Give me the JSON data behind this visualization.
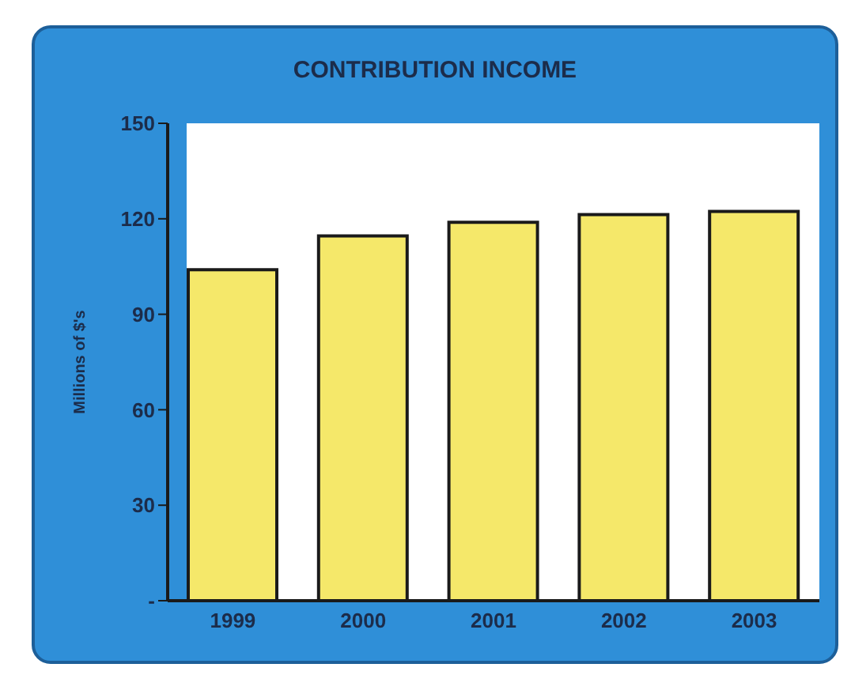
{
  "chart_data": {
    "type": "bar",
    "title": "CONTRIBUTION INCOME",
    "ylabel": "Millions of $'s",
    "categories": [
      "1999",
      "2000",
      "2001",
      "2002",
      "2003"
    ],
    "values": [
      104,
      114.6,
      118.9,
      121.3,
      122.3
    ],
    "color": "#f5e86a",
    "ylim": [
      0,
      150
    ],
    "yticks": [
      {
        "value": 0,
        "label": "-"
      },
      30,
      60,
      90,
      120,
      150
    ],
    "grid": false,
    "legend": false
  }
}
